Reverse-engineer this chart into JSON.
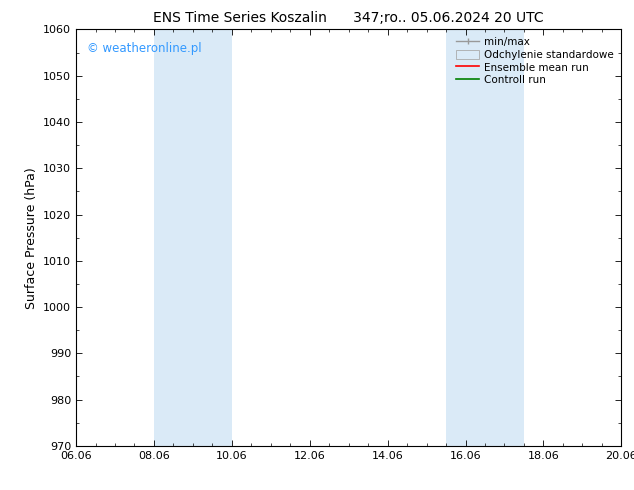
{
  "title": "ENS Time Series Koszalin      347;ro.. 05.06.2024 20 UTC",
  "ylabel": "Surface Pressure (hPa)",
  "xlabel": "",
  "ylim": [
    970,
    1060
  ],
  "xlim": [
    0,
    14
  ],
  "xtick_labels": [
    "06.06",
    "08.06",
    "10.06",
    "12.06",
    "14.06",
    "16.06",
    "18.06",
    "20.06"
  ],
  "xtick_positions": [
    0,
    2,
    4,
    6,
    8,
    10,
    12,
    14
  ],
  "ytick_positions": [
    970,
    980,
    990,
    1000,
    1010,
    1020,
    1030,
    1040,
    1050,
    1060
  ],
  "shaded_regions": [
    {
      "x_start": 2.0,
      "x_end": 4.0,
      "color": "#daeaf7"
    },
    {
      "x_start": 9.5,
      "x_end": 11.5,
      "color": "#daeaf7"
    }
  ],
  "watermark": "© weatheronline.pl",
  "watermark_color": "#3399ff",
  "bg_color": "#ffffff",
  "plot_bg_color": "#ffffff",
  "title_fontsize": 10,
  "tick_fontsize": 8,
  "ylabel_fontsize": 9,
  "legend_fontsize": 7.5
}
